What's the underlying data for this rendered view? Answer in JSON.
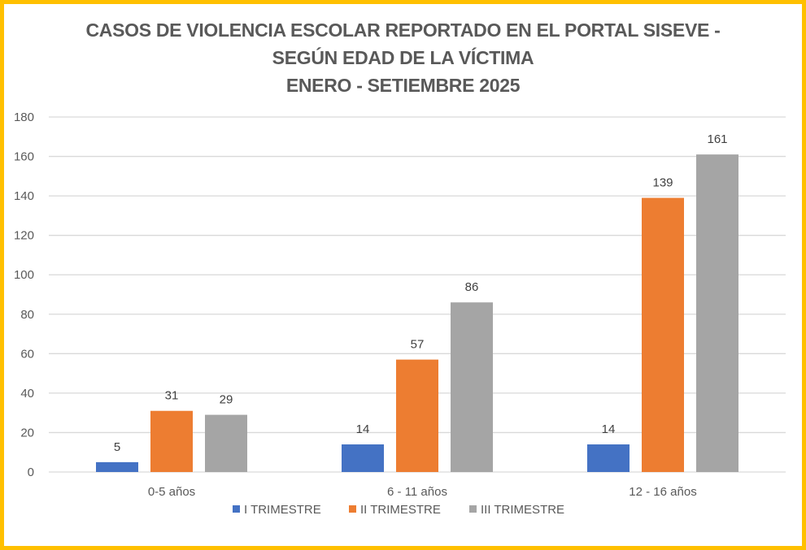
{
  "chart_data": {
    "type": "bar",
    "title": "CASOS DE VIOLENCIA ESCOLAR REPORTADO EN EL PORTAL SISEVE - SEGÚN EDAD DE LA VÍCTIMA ENERO - SETIEMBRE 2025",
    "title_lines": [
      "CASOS DE VIOLENCIA ESCOLAR REPORTADO EN EL PORTAL SISEVE -",
      "SEGÚN EDAD DE LA VÍCTIMA",
      "ENERO - SETIEMBRE 2025"
    ],
    "categories": [
      "0-5 años",
      "6 - 11 años",
      "12 - 16 años"
    ],
    "series": [
      {
        "name": "I TRIMESTRE",
        "color": "#4472C4",
        "values": [
          5,
          14,
          14
        ]
      },
      {
        "name": "II TRIMESTRE",
        "color": "#ED7D31",
        "values": [
          31,
          57,
          139
        ]
      },
      {
        "name": "III TRIMESTRE",
        "color": "#A5A5A5",
        "values": [
          29,
          86,
          161
        ]
      }
    ],
    "xlabel": "",
    "ylabel": "",
    "ylim": [
      0,
      180
    ],
    "yticks": [
      0,
      20,
      40,
      60,
      80,
      100,
      120,
      140,
      160,
      180
    ],
    "grid": true,
    "legend": "bottom",
    "data_labels": true
  }
}
